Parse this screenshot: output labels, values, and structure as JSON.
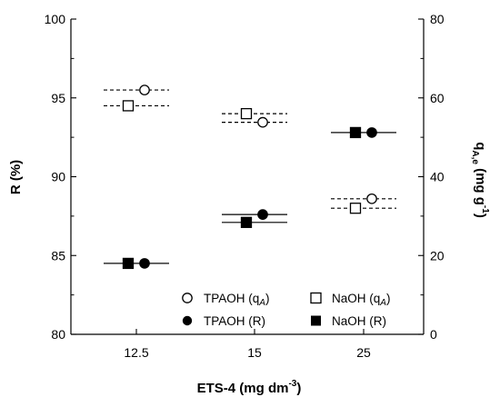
{
  "chart_data": {
    "type": "scatter",
    "xlabel": {
      "main": "ETS-4 (mg dm",
      "sup": "-3",
      "tail": ")"
    },
    "ylabel_left": "R (%)",
    "ylabel_right": {
      "main": "q",
      "sub": "A,e",
      "mid": " (mg g",
      "sup": "-1",
      "tail": ")"
    },
    "categories": [
      "12.5",
      "15",
      "25"
    ],
    "ylim_left": [
      80,
      100
    ],
    "yticks_left": [
      80,
      85,
      90,
      95,
      100
    ],
    "ylim_right": [
      0,
      80
    ],
    "yticks_right": [
      0,
      20,
      40,
      60,
      80
    ],
    "grid": false,
    "legend_placement": "bottom-right",
    "series": [
      {
        "name": "TPAOH (q",
        "name_sub": "A",
        "name_tail": ")",
        "marker": "circle-open",
        "axis": "right",
        "line": "dashed",
        "values": [
          62.0,
          53.8,
          34.4
        ]
      },
      {
        "name": "NaOH (q",
        "name_sub": "A",
        "name_tail": ")",
        "marker": "square-open",
        "axis": "right",
        "line": "dashed",
        "values": [
          58.0,
          56.0,
          32.0
        ]
      },
      {
        "name": "TPAOH (R)",
        "marker": "circle-filled",
        "axis": "left",
        "line": "solid",
        "values": [
          84.5,
          87.6,
          92.8
        ]
      },
      {
        "name": "NaOH (R)",
        "marker": "square-filled",
        "axis": "left",
        "line": "solid",
        "values": [
          84.5,
          87.1,
          92.8
        ]
      }
    ]
  }
}
